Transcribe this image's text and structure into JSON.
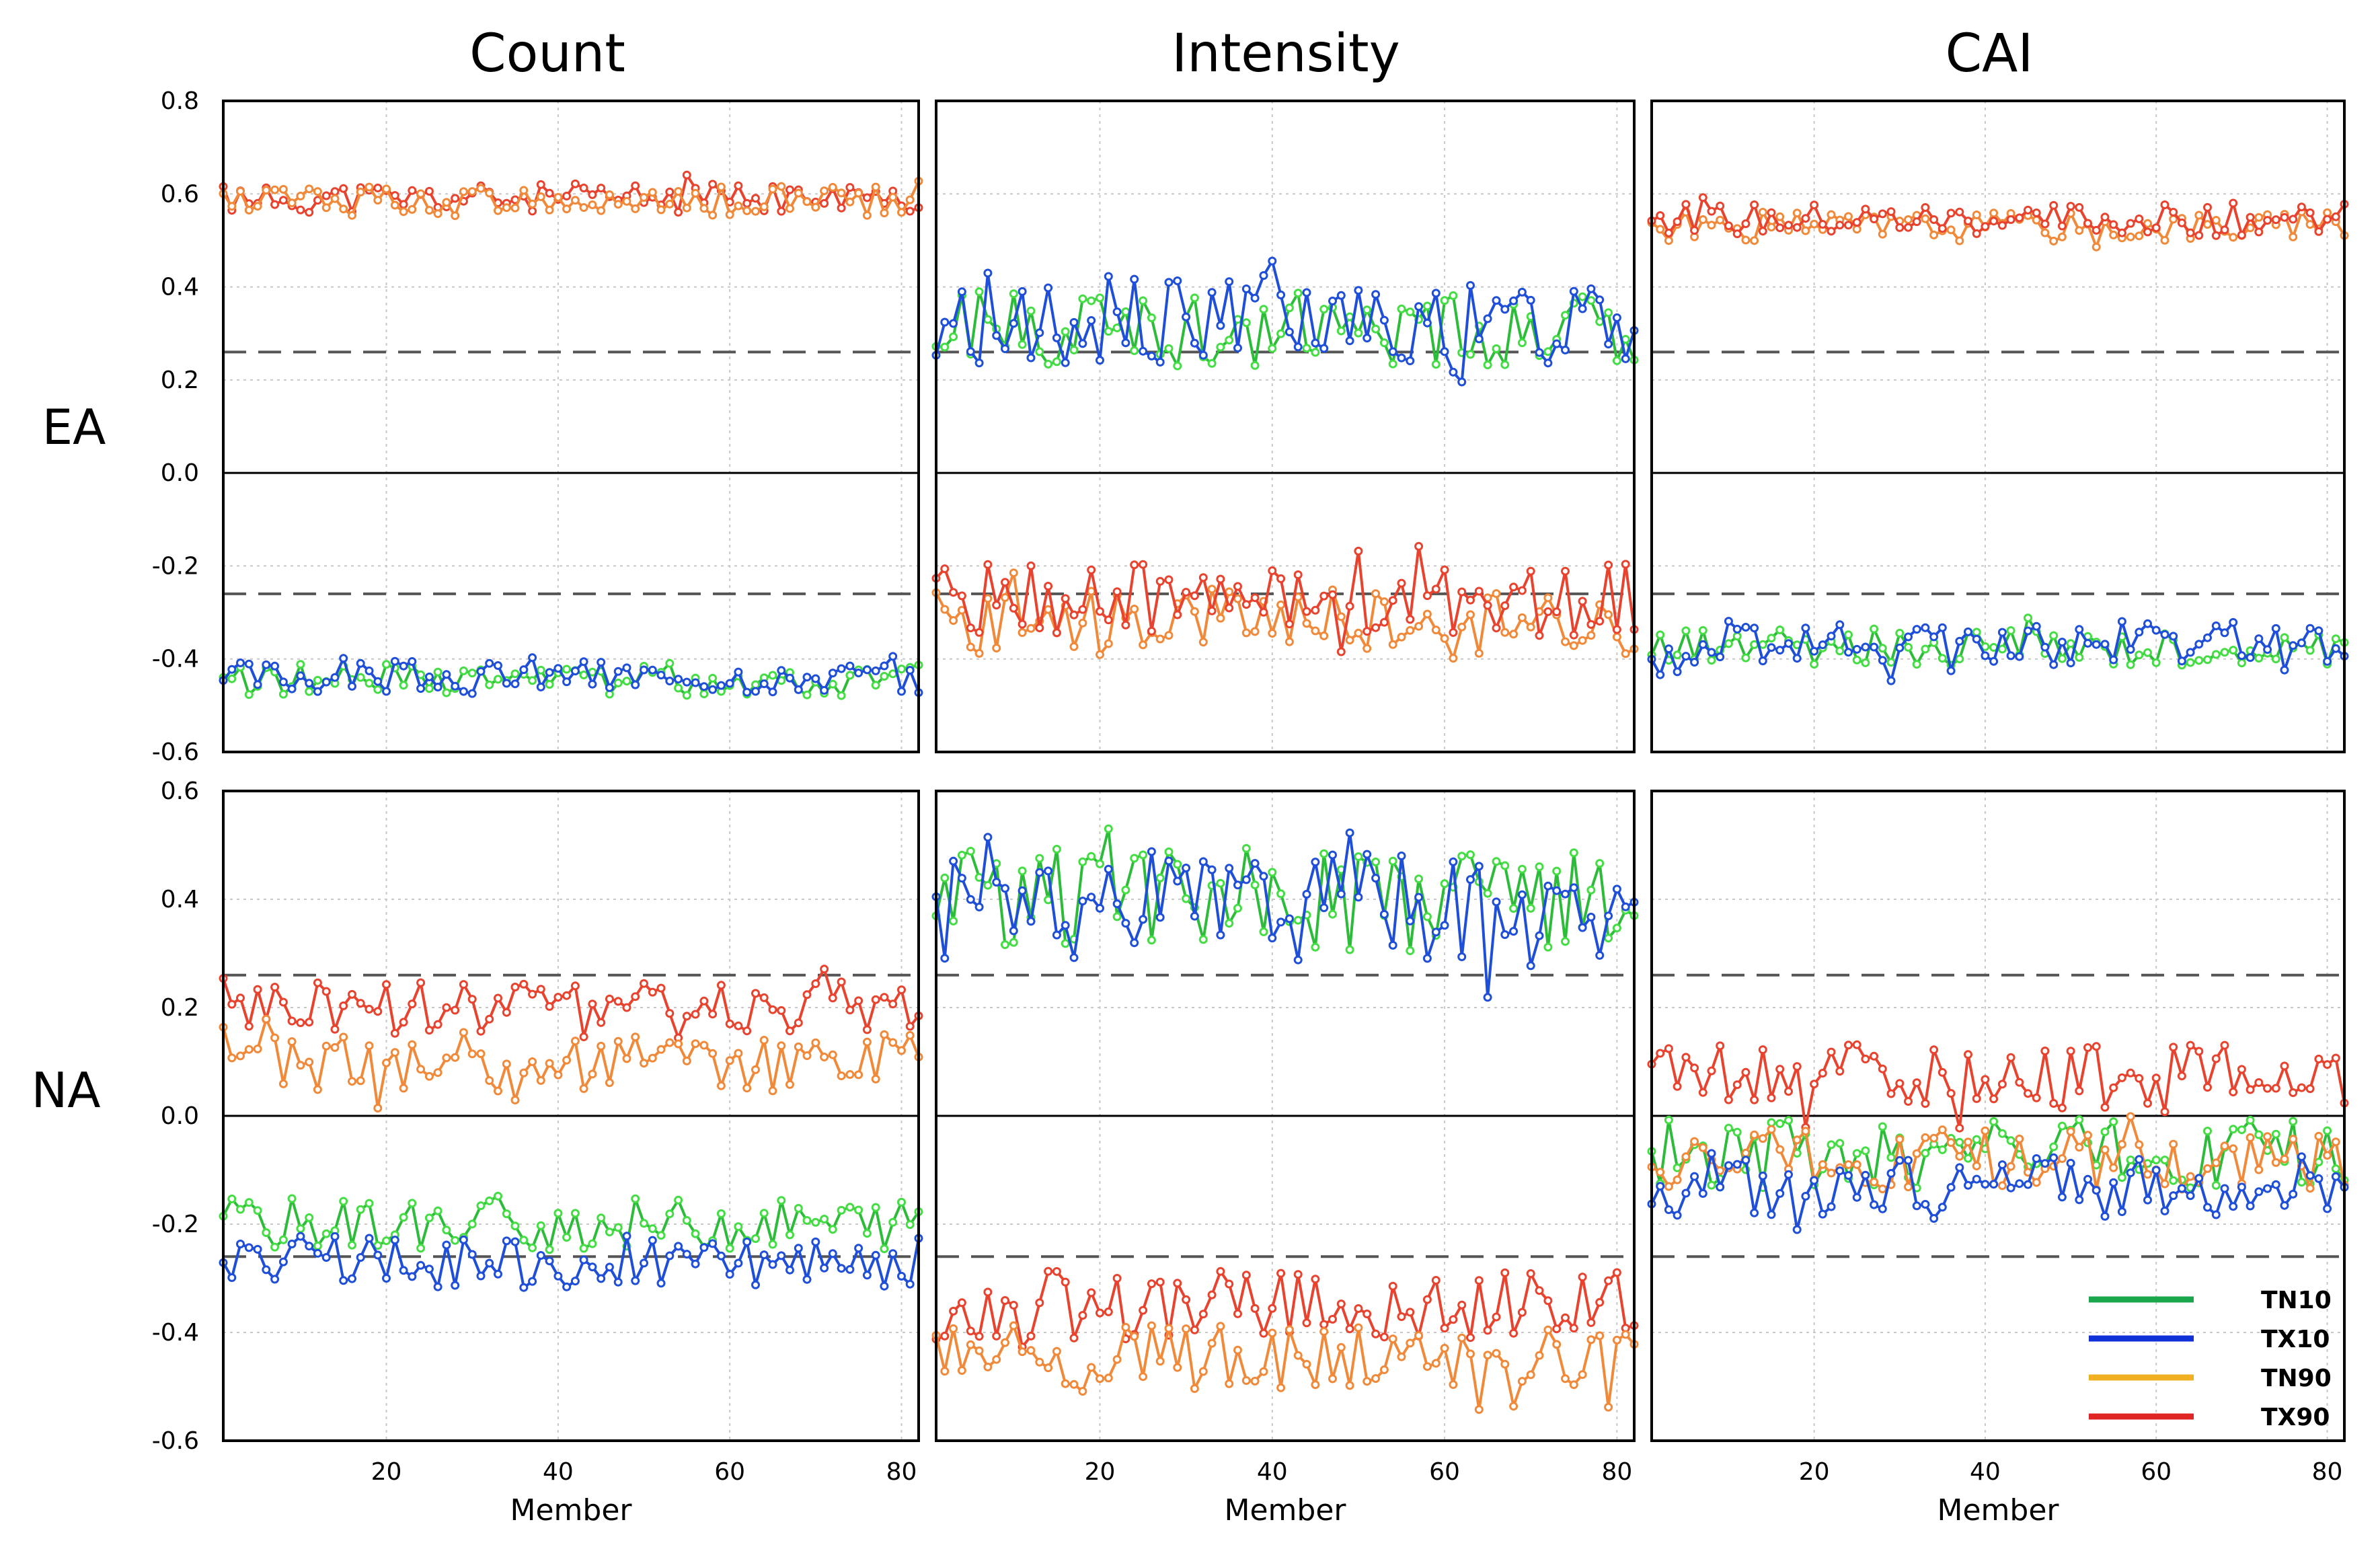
{
  "column_titles": [
    "Count",
    "Intensity",
    "CAI"
  ],
  "row_titles": [
    "EA",
    "NA"
  ],
  "x_axis_label": "Member",
  "legend": [
    {
      "name": "TN10",
      "color": "#1aa64b"
    },
    {
      "name": "TX10",
      "color": "#1030d8"
    },
    {
      "name": "TN90",
      "color": "#f0b020"
    },
    {
      "name": "TX90",
      "color": "#e02525"
    }
  ],
  "chart_data": [
    {
      "type": "line",
      "panel": "EA-Count",
      "title": "Count",
      "row": "EA",
      "xlabel": "Member",
      "ylabel": "",
      "xlim": [
        1,
        82
      ],
      "ylim": [
        -0.6,
        0.8
      ],
      "xticks": [
        20,
        40,
        60,
        80
      ],
      "yticks": [
        -0.6,
        -0.4,
        -0.2,
        0.0,
        0.2,
        0.4,
        0.6,
        0.8
      ],
      "threshold_lines": [
        0.26,
        -0.26
      ],
      "series": [
        {
          "name": "TX90",
          "color": "#e8432e",
          "marker_color": "#e8432e",
          "approx_mean": 0.59,
          "spread": 0.02,
          "seed": 11
        },
        {
          "name": "TN90",
          "color": "#f08a3a",
          "marker_color": "#f08a3a",
          "approx_mean": 0.585,
          "spread": 0.02,
          "seed": 12
        },
        {
          "name": "TN10",
          "color": "#2dbb3a",
          "marker_color": "#44dd44",
          "approx_mean": -0.445,
          "spread": 0.022,
          "seed": 13
        },
        {
          "name": "TX10",
          "color": "#1f4fd8",
          "marker_color": "#1f4fd8",
          "approx_mean": -0.44,
          "spread": 0.022,
          "seed": 14
        }
      ]
    },
    {
      "type": "line",
      "panel": "EA-Intensity",
      "title": "Intensity",
      "row": "EA",
      "xlabel": "Member",
      "ylabel": "",
      "xlim": [
        1,
        82
      ],
      "ylim": [
        -0.6,
        0.8
      ],
      "xticks": [
        20,
        40,
        60,
        80
      ],
      "yticks": [
        -0.6,
        -0.4,
        -0.2,
        0.0,
        0.2,
        0.4,
        0.6,
        0.8
      ],
      "threshold_lines": [
        0.26,
        -0.26
      ],
      "series": [
        {
          "name": "TN10",
          "color": "#2dbb3a",
          "marker_color": "#44dd44",
          "approx_mean": 0.31,
          "spread": 0.05,
          "seed": 21
        },
        {
          "name": "TX10",
          "color": "#1f4fd8",
          "marker_color": "#1f4fd8",
          "approx_mean": 0.33,
          "spread": 0.06,
          "seed": 22
        },
        {
          "name": "TN90",
          "color": "#f08a3a",
          "marker_color": "#f08a3a",
          "approx_mean": -0.32,
          "spread": 0.045,
          "seed": 23
        },
        {
          "name": "TX90",
          "color": "#e8432e",
          "marker_color": "#e8432e",
          "approx_mean": -0.27,
          "spread": 0.05,
          "seed": 24
        }
      ]
    },
    {
      "type": "line",
      "panel": "EA-CAI",
      "title": "CAI",
      "row": "EA",
      "xlabel": "Member",
      "ylabel": "",
      "xlim": [
        1,
        82
      ],
      "ylim": [
        -0.6,
        0.8
      ],
      "xticks": [
        20,
        40,
        60,
        80
      ],
      "yticks": [
        -0.6,
        -0.4,
        -0.2,
        0.0,
        0.2,
        0.4,
        0.6,
        0.8
      ],
      "threshold_lines": [
        0.26,
        -0.26
      ],
      "series": [
        {
          "name": "TN90",
          "color": "#f08a3a",
          "marker_color": "#f08a3a",
          "approx_mean": 0.53,
          "spread": 0.02,
          "seed": 31
        },
        {
          "name": "TX90",
          "color": "#e8432e",
          "marker_color": "#e8432e",
          "approx_mean": 0.545,
          "spread": 0.022,
          "seed": 32
        },
        {
          "name": "TN10",
          "color": "#2dbb3a",
          "marker_color": "#44dd44",
          "approx_mean": -0.375,
          "spread": 0.025,
          "seed": 33
        },
        {
          "name": "TX10",
          "color": "#1f4fd8",
          "marker_color": "#1f4fd8",
          "approx_mean": -0.365,
          "spread": 0.03,
          "seed": 34
        }
      ]
    },
    {
      "type": "line",
      "panel": "NA-Count",
      "title": "Count",
      "row": "NA",
      "xlabel": "Member",
      "ylabel": "",
      "xlim": [
        1,
        82
      ],
      "ylim": [
        -0.6,
        0.6
      ],
      "xticks": [
        20,
        40,
        60,
        80
      ],
      "yticks": [
        -0.6,
        -0.4,
        -0.2,
        0.0,
        0.2,
        0.4,
        0.6
      ],
      "threshold_lines": [
        0.26,
        -0.26
      ],
      "series": [
        {
          "name": "TX90",
          "color": "#e8432e",
          "marker_color": "#e8432e",
          "approx_mean": 0.2,
          "spread": 0.035,
          "seed": 41
        },
        {
          "name": "TN90",
          "color": "#f08a3a",
          "marker_color": "#f08a3a",
          "approx_mean": 0.1,
          "spread": 0.035,
          "seed": 42
        },
        {
          "name": "TN10",
          "color": "#2dbb3a",
          "marker_color": "#44dd44",
          "approx_mean": -0.2,
          "spread": 0.03,
          "seed": 43
        },
        {
          "name": "TX10",
          "color": "#1f4fd8",
          "marker_color": "#1f4fd8",
          "approx_mean": -0.27,
          "spread": 0.03,
          "seed": 44
        }
      ]
    },
    {
      "type": "line",
      "panel": "NA-Intensity",
      "title": "Intensity",
      "row": "NA",
      "xlabel": "Member",
      "ylabel": "",
      "xlim": [
        1,
        82
      ],
      "ylim": [
        -0.6,
        0.6
      ],
      "xticks": [
        20,
        40,
        60,
        80
      ],
      "yticks": [
        -0.6,
        -0.4,
        -0.2,
        0.0,
        0.2,
        0.4,
        0.6
      ],
      "threshold_lines": [
        0.26,
        -0.26
      ],
      "series": [
        {
          "name": "TN10",
          "color": "#2dbb3a",
          "marker_color": "#44dd44",
          "approx_mean": 0.4,
          "spread": 0.06,
          "seed": 51
        },
        {
          "name": "TX10",
          "color": "#1f4fd8",
          "marker_color": "#1f4fd8",
          "approx_mean": 0.39,
          "spread": 0.065,
          "seed": 52
        },
        {
          "name": "TX90",
          "color": "#e8432e",
          "marker_color": "#e8432e",
          "approx_mean": -0.35,
          "spread": 0.04,
          "seed": 53
        },
        {
          "name": "TN90",
          "color": "#f08a3a",
          "marker_color": "#f08a3a",
          "approx_mean": -0.45,
          "spread": 0.04,
          "seed": 54
        }
      ]
    },
    {
      "type": "line",
      "panel": "NA-CAI",
      "title": "CAI",
      "row": "NA",
      "xlabel": "Member",
      "ylabel": "",
      "xlim": [
        1,
        82
      ],
      "ylim": [
        -0.6,
        0.6
      ],
      "xticks": [
        20,
        40,
        60,
        80
      ],
      "yticks": [
        -0.6,
        -0.4,
        -0.2,
        0.0,
        0.2,
        0.4,
        0.6
      ],
      "threshold_lines": [
        0.26,
        -0.26
      ],
      "series": [
        {
          "name": "TX90",
          "color": "#e8432e",
          "marker_color": "#e8432e",
          "approx_mean": 0.07,
          "spread": 0.04,
          "seed": 61
        },
        {
          "name": "TN10",
          "color": "#2dbb3a",
          "marker_color": "#44dd44",
          "approx_mean": -0.07,
          "spread": 0.04,
          "seed": 62
        },
        {
          "name": "TN90",
          "color": "#f08a3a",
          "marker_color": "#f08a3a",
          "approx_mean": -0.08,
          "spread": 0.035,
          "seed": 63
        },
        {
          "name": "TX10",
          "color": "#1f4fd8",
          "marker_color": "#1f4fd8",
          "approx_mean": -0.13,
          "spread": 0.035,
          "seed": 64
        }
      ]
    }
  ]
}
